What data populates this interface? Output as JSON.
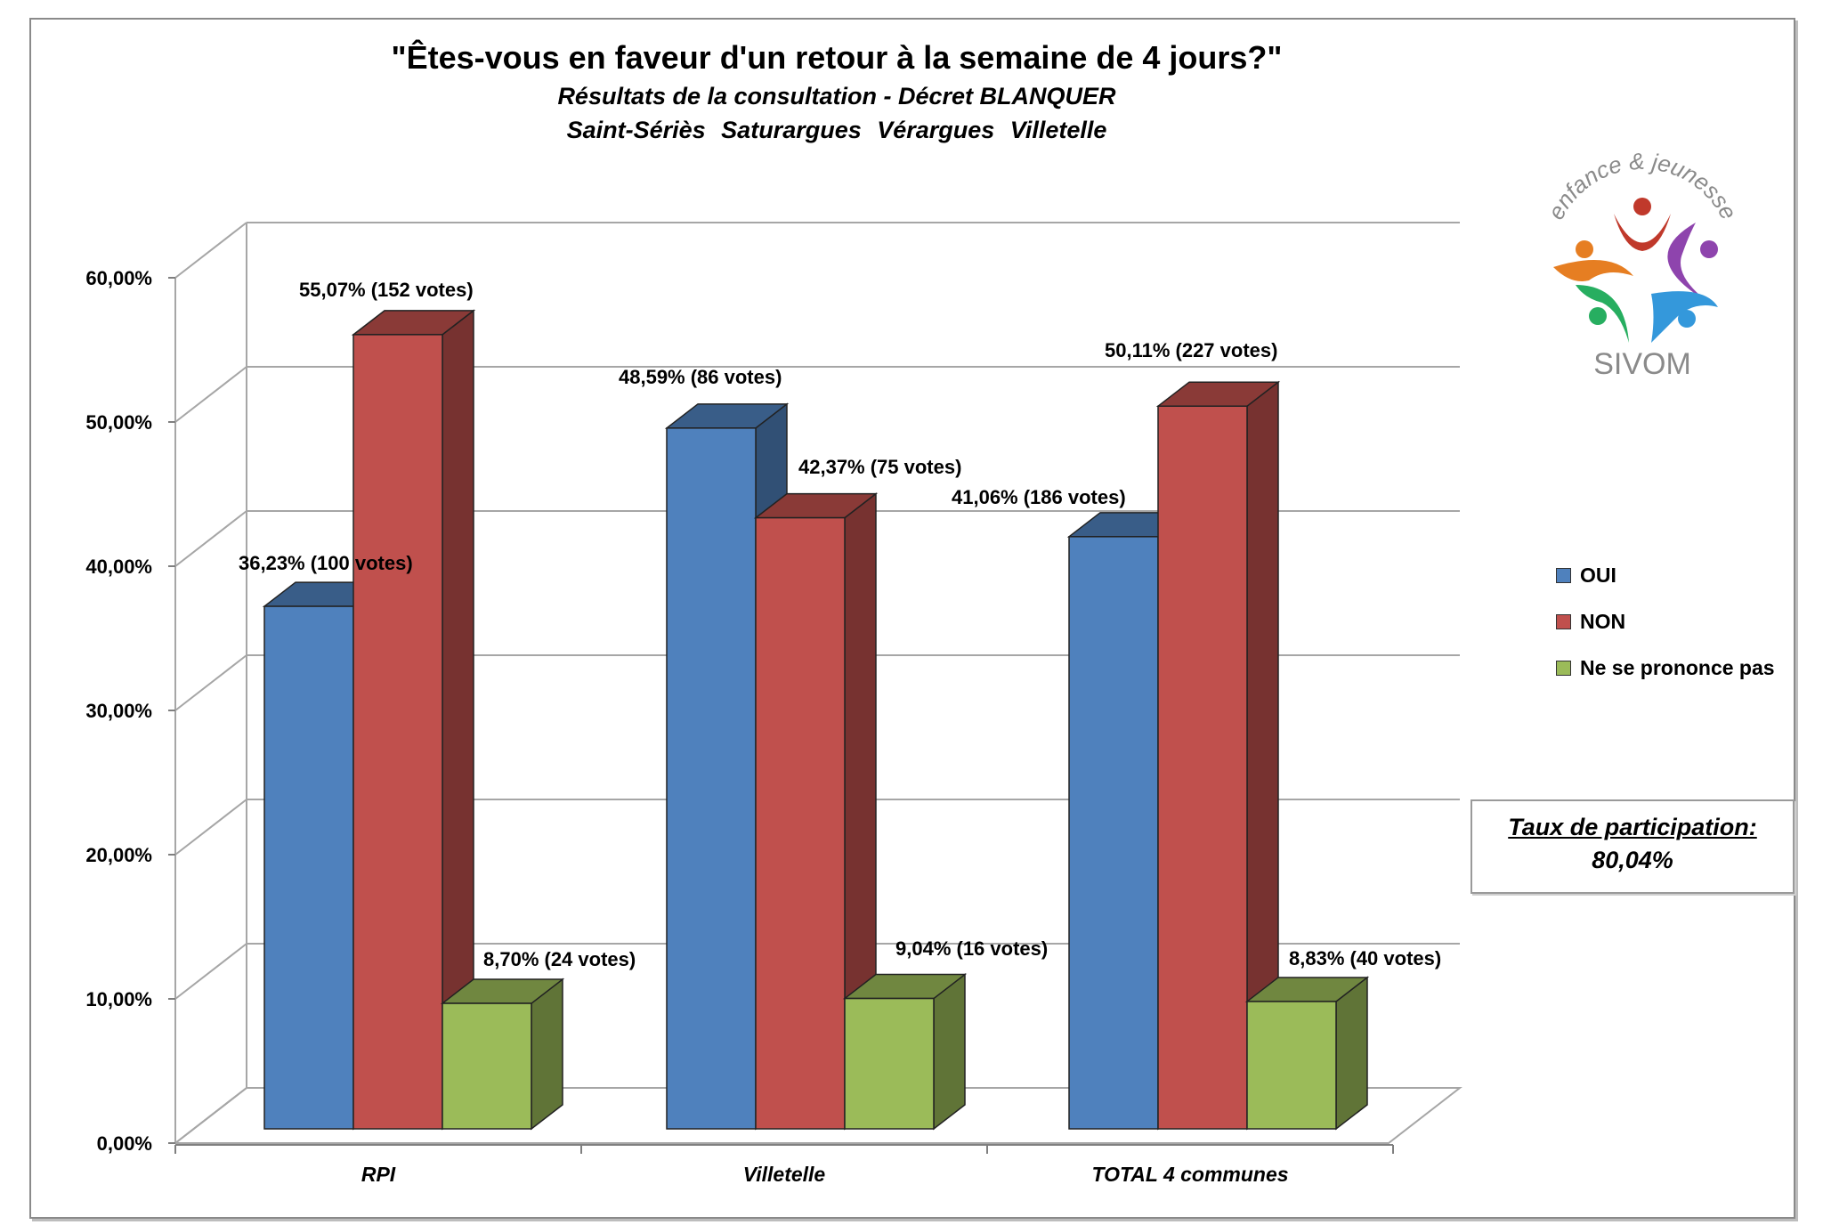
{
  "chart_data": {
    "type": "bar",
    "title": "\"Êtes-vous en faveur d'un retour à la semaine de 4 jours?\"",
    "subtitle": "Résultats de la consultation - Décret BLANQUER",
    "subtitle2": "Saint-Sériès   Saturargues   Vérargues   Villetelle",
    "categories": [
      "RPI",
      "Villetelle",
      "TOTAL 4 communes"
    ],
    "series": [
      {
        "name": "OUI",
        "color": "#4f81bd",
        "values": [
          36.23,
          48.59,
          41.06
        ],
        "labels": [
          "36,23% (100 votes)",
          "48,59% (86 votes)",
          "41,06% (186 votes)"
        ]
      },
      {
        "name": "NON",
        "color": "#c0504d",
        "values": [
          55.07,
          42.37,
          50.11
        ],
        "labels": [
          "55,07% (152 votes)",
          "42,37% (75 votes)",
          "50,11% (227 votes)"
        ]
      },
      {
        "name": "Ne se prononce pas",
        "color": "#9bbb59",
        "values": [
          8.7,
          9.04,
          8.83
        ],
        "labels": [
          "8,70% (24 votes)",
          "9,04% (16 votes)",
          "8,83% (40 votes)"
        ]
      }
    ],
    "yticks": [
      "0,00%",
      "10,00%",
      "20,00%",
      "30,00%",
      "40,00%",
      "50,00%",
      "60,00%"
    ],
    "ylim": [
      0,
      60
    ],
    "grid": true,
    "legend_position": "right",
    "three_d": true
  },
  "participation": {
    "label": "Taux de participation:",
    "value": "80,04%"
  },
  "logo": {
    "text_top": "enfance & jeunesse",
    "text_bottom": "SIVOM"
  }
}
